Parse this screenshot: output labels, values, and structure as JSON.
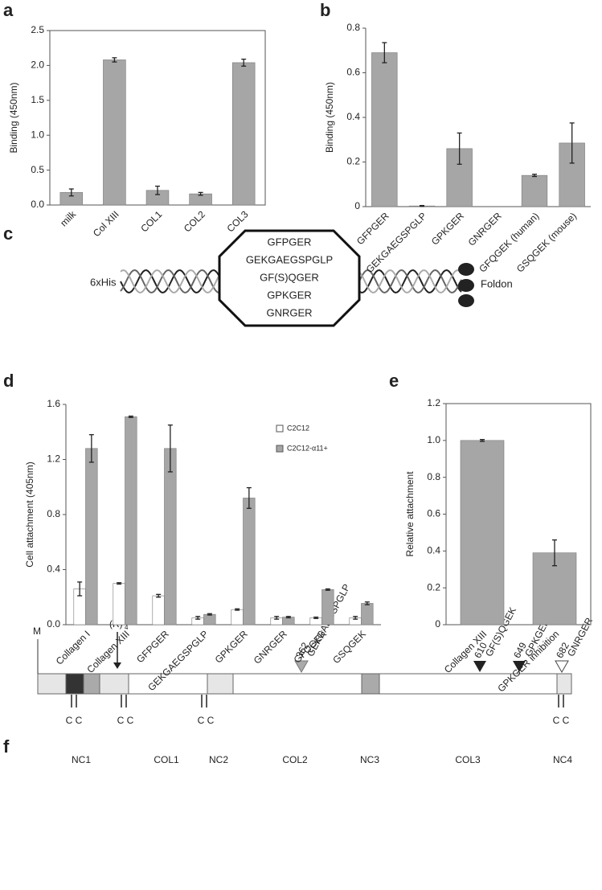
{
  "chart_data": [
    {
      "type": "bar",
      "panel_label": "a",
      "ylabel": "Binding (450nm)",
      "categories": [
        "milk",
        "Col XIII",
        "COL1",
        "COL2",
        "COL3"
      ],
      "values": [
        0.18,
        2.08,
        0.21,
        0.16,
        2.04
      ],
      "errors": [
        0.05,
        0.03,
        0.06,
        0.02,
        0.05
      ],
      "color": "#a6a6a6",
      "ylim": [
        0,
        2.5
      ],
      "yticks": [
        {
          "value": 0,
          "label": "0.0"
        },
        0.5,
        {
          "value": 1,
          "label": "1.0"
        },
        1.5,
        {
          "value": 2,
          "label": "2.0"
        },
        2.5
      ]
    },
    {
      "type": "bar",
      "panel_label": "b",
      "ylabel": "Binding  (450nm)",
      "categories": [
        "GFPGER",
        "GEKGAEGSPGLP",
        "GPKGER",
        "GNRGER",
        "GFQGEK (human)",
        "GSQGEK (mouse)"
      ],
      "values": [
        0.69,
        0.003,
        0.26,
        0,
        0.14,
        0.285
      ],
      "errors": [
        0.045,
        0.002,
        0.07,
        0,
        0.005,
        0.09
      ],
      "color": "#a6a6a6",
      "ylim": [
        0,
        0.8
      ],
      "yticks": [
        0,
        0.2,
        0.4,
        0.6,
        0.8
      ]
    },
    {
      "type": "grouped-bar",
      "panel_label": "d",
      "ylabel": "Cell attachment (405nm)",
      "categories": [
        "Collagen I",
        "Collagen XIII",
        "GFPGER",
        "GEKGAEGSPGLP",
        "GPKGER",
        "GNRGER",
        "GFQGEK",
        "GSQGEK"
      ],
      "series": [
        {
          "name": "C2C12",
          "color": "#ffffff",
          "values": [
            0.26,
            0.3,
            0.21,
            0.05,
            0.11,
            0.05,
            0.05,
            0.05
          ],
          "errors": [
            0.05,
            0.005,
            0.01,
            0.01,
            0.005,
            0.01,
            0.005,
            0.01
          ]
        },
        {
          "name": "C2C12-α11+",
          "color": "#a6a6a6",
          "values": [
            1.28,
            1.51,
            1.28,
            0.075,
            0.92,
            0.055,
            0.255,
            0.155
          ],
          "errors": [
            0.1,
            0.005,
            0.17,
            0.005,
            0.075,
            0.005,
            0.005,
            0.01
          ]
        }
      ],
      "legend": "upper right",
      "ylim": [
        0,
        1.6
      ],
      "yticks": [
        {
          "value": 0,
          "label": "0.0"
        },
        0.4,
        0.8,
        1.2,
        1.6
      ]
    },
    {
      "type": "bar",
      "panel_label": "e",
      "ylabel": "Relative attachment",
      "categories": [
        "Collagen XIII",
        "GPKGER inhibition"
      ],
      "values": [
        1.0,
        0.39
      ],
      "errors": [
        0.005,
        0.07
      ],
      "color": "#a6a6a6",
      "ylim": [
        0,
        1.2
      ],
      "yticks": [
        0,
        0.2,
        0.4,
        0.6,
        0.8,
        {
          "value": 1,
          "label": "1.0"
        },
        1.2
      ]
    }
  ],
  "diagram_c": {
    "panel_label": "c",
    "left_label": "6xHis",
    "right_label": "Foldon",
    "inserts": [
      "GFPGER",
      "GEKGAEGSPGLP",
      "GF(S)QGER",
      "GPKGER",
      "GNRGER"
    ]
  },
  "diagram_f": {
    "panel_label": "f",
    "start_label": "M",
    "repeat_label": "(R)",
    "repeat_sub": "4",
    "sites": [
      {
        "number": "362",
        "motif": "GEKGAEGSPGLP"
      },
      {
        "number": "610",
        "motif": "GF(S)QGEK"
      },
      {
        "number": "649",
        "motif": "GPKGER"
      },
      {
        "number": "682",
        "motif": "GNRGER"
      }
    ],
    "cysteines": [
      "C C",
      "C C",
      "C C",
      "C C"
    ],
    "domains": [
      "NC1",
      "COL1",
      "NC2",
      "COL2",
      "NC3",
      "COL3",
      "NC4"
    ]
  }
}
